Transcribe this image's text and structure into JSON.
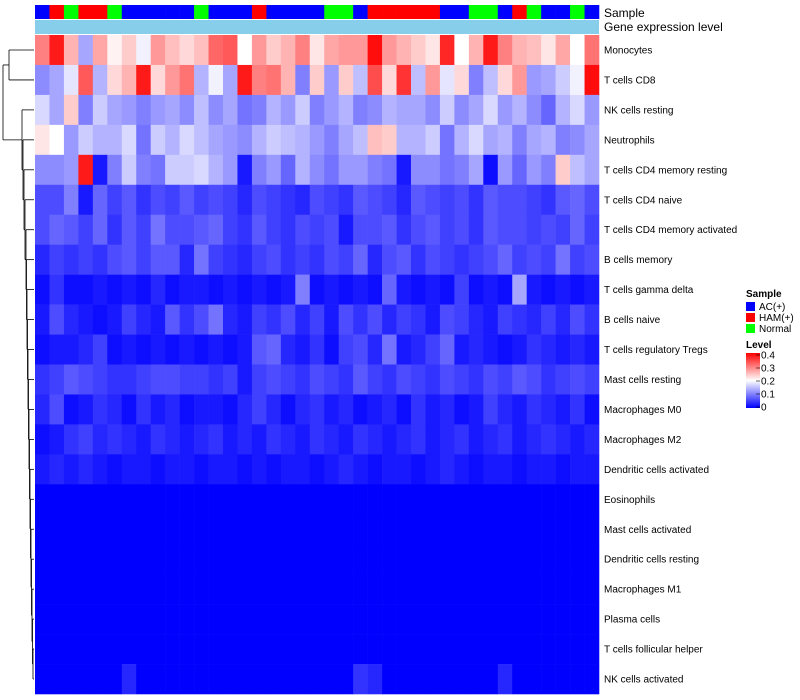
{
  "chart_data": {
    "type": "heatmap",
    "annotation_labels": {
      "sample": "Sample",
      "gene_expression": "Gene expression level"
    },
    "rows": [
      "Monocytes",
      "T cells CD8",
      "NK cells resting",
      "Neutrophils",
      "T cells CD4 memory resting",
      "T cells CD4 naive",
      "T cells CD4 memory activated",
      "B cells memory",
      "T cells gamma delta",
      "B cells naive",
      "T cells regulatory  Tregs",
      "Mast cells resting",
      "Macrophages M0",
      "Macrophages M2",
      "Dendritic cells activated",
      "Eosinophils",
      "Mast cells activated",
      "Dendritic cells resting",
      "Macrophages M1",
      "Plasma cells",
      "T cells follicular helper",
      "NK cells activated"
    ],
    "sample_groups": [
      "AC(+)",
      "HAM(+)",
      "Normal",
      "HAM(+)",
      "HAM(+)",
      "Normal",
      "AC(+)",
      "AC(+)",
      "AC(+)",
      "AC(+)",
      "AC(+)",
      "Normal",
      "AC(+)",
      "AC(+)",
      "AC(+)",
      "HAM(+)",
      "AC(+)",
      "AC(+)",
      "AC(+)",
      "AC(+)",
      "Normal",
      "Normal",
      "AC(+)",
      "HAM(+)",
      "HAM(+)",
      "HAM(+)",
      "HAM(+)",
      "HAM(+)",
      "AC(+)",
      "AC(+)",
      "Normal",
      "Normal",
      "AC(+)",
      "HAM(+)",
      "Normal",
      "AC(+)",
      "AC(+)",
      "Normal",
      "AC(+)"
    ],
    "values": [
      [
        0.3,
        0.38,
        0.26,
        0.13,
        0.27,
        0.21,
        0.24,
        0.19,
        0.28,
        0.25,
        0.23,
        0.25,
        0.32,
        0.33,
        0.2,
        0.28,
        0.24,
        0.26,
        0.3,
        0.22,
        0.27,
        0.28,
        0.28,
        0.39,
        0.28,
        0.26,
        0.24,
        0.22,
        0.37,
        0.2,
        0.26,
        0.38,
        0.3,
        0.26,
        0.25,
        0.22,
        0.27,
        0.2,
        0.31
      ],
      [
        0.11,
        0.13,
        0.18,
        0.33,
        0.14,
        0.23,
        0.26,
        0.38,
        0.23,
        0.28,
        0.31,
        0.14,
        0.19,
        0.13,
        0.38,
        0.3,
        0.31,
        0.26,
        0.1,
        0.24,
        0.12,
        0.24,
        0.15,
        0.34,
        0.23,
        0.36,
        0.15,
        0.28,
        0.18,
        0.23,
        0.1,
        0.15,
        0.23,
        0.28,
        0.12,
        0.13,
        0.16,
        0.19,
        0.39
      ],
      [
        0.17,
        0.13,
        0.24,
        0.1,
        0.16,
        0.13,
        0.12,
        0.1,
        0.12,
        0.13,
        0.11,
        0.15,
        0.11,
        0.13,
        0.09,
        0.1,
        0.14,
        0.12,
        0.16,
        0.1,
        0.12,
        0.14,
        0.1,
        0.11,
        0.14,
        0.13,
        0.13,
        0.11,
        0.16,
        0.11,
        0.13,
        0.17,
        0.12,
        0.14,
        0.11,
        0.08,
        0.14,
        0.17,
        0.12
      ],
      [
        0.22,
        0.2,
        0.12,
        0.16,
        0.14,
        0.14,
        0.17,
        0.09,
        0.16,
        0.14,
        0.17,
        0.15,
        0.13,
        0.12,
        0.11,
        0.14,
        0.16,
        0.15,
        0.14,
        0.12,
        0.1,
        0.13,
        0.15,
        0.25,
        0.24,
        0.14,
        0.14,
        0.16,
        0.09,
        0.14,
        0.17,
        0.13,
        0.14,
        0.1,
        0.13,
        0.14,
        0.1,
        0.11,
        0.13
      ],
      [
        0.11,
        0.11,
        0.12,
        0.38,
        0.02,
        0.1,
        0.16,
        0.1,
        0.09,
        0.16,
        0.16,
        0.17,
        0.14,
        0.12,
        0.02,
        0.1,
        0.12,
        0.08,
        0.14,
        0.11,
        0.09,
        0.12,
        0.12,
        0.1,
        0.09,
        0.02,
        0.11,
        0.11,
        0.09,
        0.1,
        0.13,
        0.01,
        0.12,
        0.08,
        0.12,
        0.1,
        0.24,
        0.15,
        0.13
      ],
      [
        0.06,
        0.06,
        0.1,
        0.02,
        0.08,
        0.05,
        0.07,
        0.04,
        0.06,
        0.05,
        0.07,
        0.05,
        0.06,
        0.05,
        0.03,
        0.06,
        0.05,
        0.04,
        0.03,
        0.06,
        0.05,
        0.04,
        0.07,
        0.06,
        0.05,
        0.03,
        0.07,
        0.06,
        0.05,
        0.06,
        0.04,
        0.07,
        0.06,
        0.06,
        0.05,
        0.04,
        0.07,
        0.08,
        0.06
      ],
      [
        0.06,
        0.08,
        0.07,
        0.05,
        0.08,
        0.04,
        0.07,
        0.05,
        0.09,
        0.06,
        0.06,
        0.07,
        0.08,
        0.05,
        0.04,
        0.07,
        0.05,
        0.04,
        0.06,
        0.05,
        0.06,
        0.02,
        0.06,
        0.06,
        0.07,
        0.04,
        0.06,
        0.07,
        0.05,
        0.06,
        0.04,
        0.07,
        0.06,
        0.06,
        0.05,
        0.06,
        0.05,
        0.08,
        0.05
      ],
      [
        0.03,
        0.05,
        0.04,
        0.05,
        0.04,
        0.06,
        0.07,
        0.05,
        0.07,
        0.07,
        0.03,
        0.09,
        0.05,
        0.04,
        0.03,
        0.05,
        0.06,
        0.04,
        0.05,
        0.04,
        0.06,
        0.05,
        0.08,
        0.03,
        0.06,
        0.07,
        0.04,
        0.06,
        0.05,
        0.04,
        0.05,
        0.06,
        0.08,
        0.05,
        0.06,
        0.05,
        0.09,
        0.05,
        0.06
      ],
      [
        0.01,
        0.04,
        0.01,
        0.01,
        0.02,
        0.01,
        0.02,
        0.01,
        0.03,
        0.01,
        0.02,
        0.02,
        0.01,
        0.02,
        0.01,
        0.02,
        0.01,
        0.02,
        0.1,
        0.01,
        0.02,
        0.01,
        0.02,
        0.01,
        0.08,
        0.02,
        0.01,
        0.02,
        0.01,
        0.05,
        0.01,
        0.02,
        0.01,
        0.13,
        0.02,
        0.01,
        0.02,
        0.01,
        0.02
      ],
      [
        0.02,
        0.06,
        0.03,
        0.02,
        0.01,
        0.02,
        0.05,
        0.03,
        0.02,
        0.07,
        0.04,
        0.06,
        0.09,
        0.03,
        0.02,
        0.05,
        0.04,
        0.06,
        0.03,
        0.05,
        0.02,
        0.06,
        0.04,
        0.06,
        0.03,
        0.05,
        0.04,
        0.02,
        0.06,
        0.05,
        0.03,
        0.02,
        0.05,
        0.04,
        0.03,
        0.05,
        0.03,
        0.06,
        0.04
      ],
      [
        0.01,
        0.02,
        0.02,
        0.03,
        0.05,
        0.01,
        0.02,
        0.01,
        0.02,
        0.01,
        0.02,
        0.01,
        0.02,
        0.01,
        0.02,
        0.07,
        0.08,
        0.03,
        0.02,
        0.04,
        0.01,
        0.05,
        0.06,
        0.03,
        0.09,
        0.02,
        0.03,
        0.05,
        0.08,
        0.02,
        0.03,
        0.02,
        0.01,
        0.02,
        0.04,
        0.03,
        0.02,
        0.03,
        0.02
      ],
      [
        0.04,
        0.05,
        0.07,
        0.06,
        0.05,
        0.04,
        0.04,
        0.05,
        0.06,
        0.06,
        0.05,
        0.05,
        0.04,
        0.05,
        0.02,
        0.05,
        0.06,
        0.05,
        0.04,
        0.06,
        0.05,
        0.04,
        0.07,
        0.05,
        0.04,
        0.06,
        0.05,
        0.04,
        0.06,
        0.05,
        0.04,
        0.06,
        0.05,
        0.07,
        0.06,
        0.04,
        0.05,
        0.06,
        0.05
      ],
      [
        0.03,
        0.06,
        0.01,
        0.02,
        0.04,
        0.03,
        0.01,
        0.04,
        0.02,
        0.03,
        0.01,
        0.02,
        0.02,
        0.01,
        0.03,
        0.05,
        0.03,
        0.01,
        0.03,
        0.04,
        0.02,
        0.03,
        0.01,
        0.02,
        0.03,
        0.01,
        0.04,
        0.02,
        0.03,
        0.01,
        0.02,
        0.05,
        0.03,
        0.02,
        0.04,
        0.03,
        0.02,
        0.04,
        0.01
      ],
      [
        0.01,
        0.02,
        0.04,
        0.05,
        0.03,
        0.04,
        0.03,
        0.02,
        0.04,
        0.03,
        0.02,
        0.03,
        0.04,
        0.02,
        0.03,
        0.02,
        0.04,
        0.03,
        0.02,
        0.04,
        0.03,
        0.02,
        0.04,
        0.03,
        0.02,
        0.03,
        0.04,
        0.02,
        0.03,
        0.04,
        0.02,
        0.03,
        0.04,
        0.02,
        0.03,
        0.04,
        0.03,
        0.02,
        0.03
      ],
      [
        0.02,
        0.03,
        0.02,
        0.03,
        0.02,
        0.01,
        0.02,
        0.02,
        0.01,
        0.02,
        0.02,
        0.01,
        0.02,
        0.02,
        0.01,
        0.02,
        0.01,
        0.02,
        0.02,
        0.01,
        0.02,
        0.03,
        0.02,
        0.01,
        0.02,
        0.02,
        0.01,
        0.02,
        0.03,
        0.02,
        0.01,
        0.02,
        0.02,
        0.01,
        0.02,
        0.02,
        0.01,
        0.02,
        0.02
      ],
      [
        0,
        0,
        0,
        0,
        0,
        0,
        0,
        0,
        0,
        0,
        0,
        0,
        0,
        0,
        0,
        0,
        0,
        0,
        0,
        0,
        0,
        0,
        0,
        0,
        0,
        0,
        0,
        0,
        0,
        0,
        0,
        0,
        0,
        0,
        0,
        0,
        0,
        0,
        0
      ],
      [
        0,
        0,
        0,
        0,
        0,
        0,
        0,
        0,
        0,
        0,
        0,
        0,
        0,
        0,
        0,
        0,
        0,
        0,
        0,
        0,
        0,
        0,
        0,
        0,
        0,
        0,
        0,
        0,
        0,
        0,
        0,
        0,
        0,
        0,
        0,
        0,
        0,
        0,
        0
      ],
      [
        0,
        0,
        0,
        0,
        0,
        0,
        0,
        0,
        0,
        0,
        0,
        0,
        0,
        0,
        0,
        0,
        0,
        0,
        0,
        0,
        0,
        0,
        0,
        0,
        0,
        0,
        0,
        0,
        0,
        0,
        0,
        0,
        0,
        0,
        0,
        0,
        0,
        0,
        0
      ],
      [
        0,
        0,
        0,
        0,
        0,
        0,
        0,
        0,
        0,
        0,
        0,
        0,
        0,
        0,
        0,
        0,
        0,
        0,
        0,
        0,
        0,
        0,
        0,
        0,
        0,
        0,
        0,
        0,
        0,
        0,
        0,
        0,
        0,
        0,
        0,
        0,
        0,
        0,
        0
      ],
      [
        0,
        0,
        0,
        0,
        0,
        0,
        0,
        0,
        0,
        0,
        0,
        0,
        0,
        0,
        0,
        0,
        0,
        0,
        0,
        0,
        0,
        0,
        0,
        0,
        0,
        0,
        0,
        0,
        0,
        0,
        0,
        0,
        0,
        0,
        0,
        0,
        0,
        0,
        0
      ],
      [
        0,
        0,
        0,
        0,
        0,
        0,
        0,
        0,
        0,
        0,
        0,
        0,
        0,
        0,
        0,
        0,
        0,
        0,
        0,
        0,
        0,
        0,
        0,
        0,
        0,
        0,
        0,
        0,
        0,
        0,
        0,
        0,
        0,
        0,
        0,
        0,
        0,
        0,
        0
      ],
      [
        0,
        0,
        0,
        0,
        0,
        0,
        0.03,
        0,
        0,
        0,
        0,
        0,
        0,
        0,
        0,
        0,
        0,
        0,
        0,
        0,
        0,
        0,
        0.04,
        0.03,
        0,
        0,
        0,
        0,
        0,
        0,
        0,
        0,
        0.03,
        0,
        0,
        0,
        0,
        0,
        0
      ]
    ],
    "legend": {
      "sample_title": "Sample",
      "sample_entries": [
        {
          "label": "AC(+)",
          "color": "#0000ff"
        },
        {
          "label": "HAM(+)",
          "color": "#ff0000"
        },
        {
          "label": "Normal",
          "color": "#00ff00"
        }
      ],
      "level_title": "Level",
      "level_ticks": [
        "0.4",
        "0.3",
        "0.2",
        "0.1",
        "0"
      ],
      "range": [
        0,
        0.4
      ]
    },
    "colors": {
      "low": "#0000ff",
      "mid": "#ffffff",
      "high": "#ff0000",
      "annotation_bar": "#87ceeb"
    }
  }
}
